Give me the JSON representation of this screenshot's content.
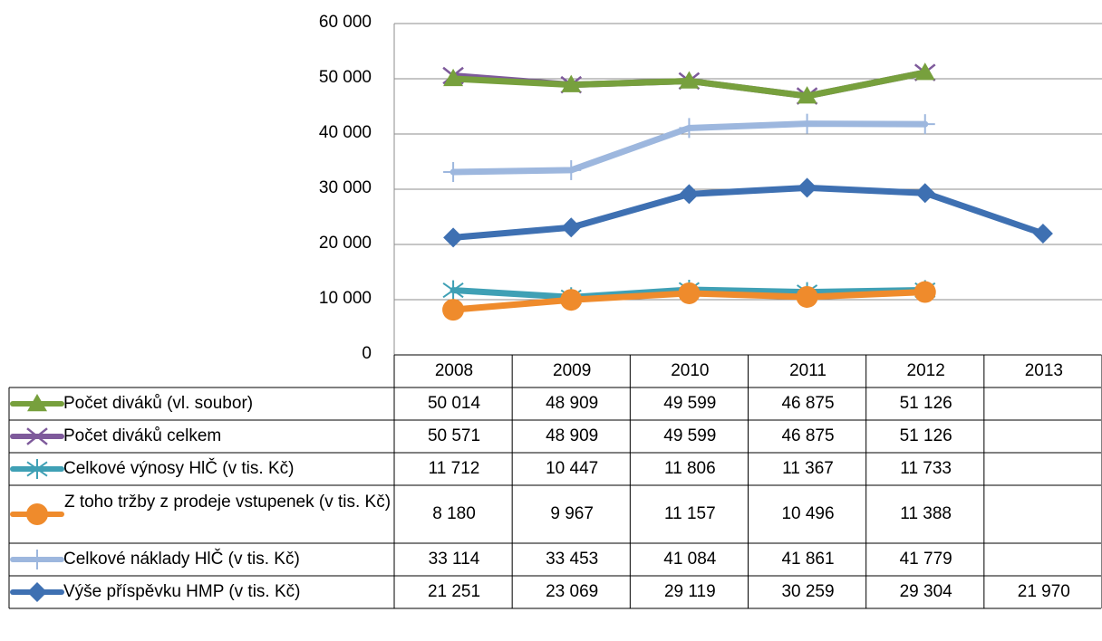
{
  "chart_data": {
    "type": "line",
    "title": "",
    "xlabel": "",
    "ylabel": "",
    "ylim": [
      0,
      60000
    ],
    "yticks": [
      0,
      10000,
      20000,
      30000,
      40000,
      50000,
      60000
    ],
    "ytick_labels": [
      "0",
      "10 000",
      "20 000",
      "30 000",
      "40 000",
      "50 000",
      "60 000"
    ],
    "grid": "horizontal",
    "legend": "data-table",
    "categories": [
      "2008",
      "2009",
      "2010",
      "2011",
      "2012",
      "2013"
    ],
    "series": [
      {
        "name": "Počet diváků (vl. soubor)",
        "marker": "triangle",
        "color": "#77a03d",
        "values": [
          50014,
          48909,
          49599,
          46875,
          51126,
          null
        ],
        "cells": [
          "50 014",
          "48 909",
          "49 599",
          "46 875",
          "51 126",
          ""
        ]
      },
      {
        "name": "Počet diváků celkem",
        "marker": "x",
        "color": "#7e5a9b",
        "values": [
          50571,
          48909,
          49599,
          46875,
          51126,
          null
        ],
        "cells": [
          "50 571",
          "48 909",
          "49 599",
          "46 875",
          "51 126",
          ""
        ]
      },
      {
        "name": "Celkové výnosy HlČ (v tis. Kč)",
        "marker": "star",
        "color": "#3fa0b5",
        "values": [
          11712,
          10447,
          11806,
          11367,
          11733,
          null
        ],
        "cells": [
          "11 712",
          "10 447",
          "11 806",
          "11 367",
          "11 733",
          ""
        ]
      },
      {
        "name": "Z toho tržby z prodeje vstupenek (v tis. Kč)",
        "marker": "circle",
        "color": "#ef8b2c",
        "values": [
          8180,
          9967,
          11157,
          10496,
          11388,
          null
        ],
        "cells": [
          "8 180",
          "9 967",
          "11 157",
          "10 496",
          "11 388",
          ""
        ]
      },
      {
        "name": "Celkové náklady HlČ (v tis. Kč)",
        "marker": "plus",
        "color": "#9db7de",
        "values": [
          33114,
          33453,
          41084,
          41861,
          41779,
          null
        ],
        "cells": [
          "33 114",
          "33 453",
          "41 084",
          "41 861",
          "41 779",
          ""
        ]
      },
      {
        "name": "Výše příspěvku HMP (v tis. Kč)",
        "marker": "diamond",
        "color": "#3e70b2",
        "values": [
          21251,
          23069,
          29119,
          30259,
          29304,
          21970
        ],
        "cells": [
          "21 251",
          "23 069",
          "29 119",
          "30 259",
          "29 304",
          "21 970"
        ]
      }
    ]
  }
}
